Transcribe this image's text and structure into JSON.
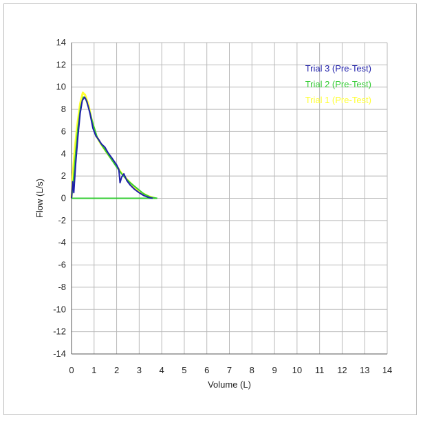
{
  "chart_data": {
    "type": "line",
    "title": "",
    "xlabel": "Volume (L)",
    "ylabel": "Flow (L/s)",
    "xlim": [
      0,
      14
    ],
    "ylim": [
      -14,
      14
    ],
    "x_ticks": [
      0,
      1,
      2,
      3,
      4,
      5,
      6,
      7,
      8,
      9,
      10,
      11,
      12,
      13,
      14
    ],
    "y_ticks": [
      -14,
      -12,
      -10,
      -8,
      -6,
      -4,
      -2,
      0,
      2,
      4,
      6,
      8,
      10,
      12,
      14
    ],
    "grid": true,
    "legend_position": "top-right",
    "series": [
      {
        "name": "Trial 1 (Pre-Test)",
        "color": "#ffff33",
        "points": [
          [
            0.0,
            0.0
          ],
          [
            0.05,
            2.0
          ],
          [
            0.15,
            4.5
          ],
          [
            0.25,
            6.5
          ],
          [
            0.38,
            8.5
          ],
          [
            0.5,
            9.5
          ],
          [
            0.6,
            9.3
          ],
          [
            0.75,
            8.4
          ],
          [
            0.9,
            7.0
          ],
          [
            1.1,
            5.6
          ],
          [
            1.3,
            4.9
          ],
          [
            1.6,
            4.0
          ],
          [
            1.9,
            3.2
          ],
          [
            2.2,
            2.3
          ],
          [
            2.5,
            1.6
          ],
          [
            2.8,
            1.0
          ],
          [
            3.1,
            0.5
          ],
          [
            3.4,
            0.2
          ],
          [
            3.7,
            0.0
          ]
        ]
      },
      {
        "name": "Trial 2 (Pre-Test)",
        "color": "#33cc33",
        "points": [
          [
            0.0,
            0.0
          ],
          [
            0.08,
            1.5
          ],
          [
            0.18,
            4.0
          ],
          [
            0.28,
            6.3
          ],
          [
            0.4,
            8.2
          ],
          [
            0.52,
            9.1
          ],
          [
            0.62,
            9.0
          ],
          [
            0.78,
            8.0
          ],
          [
            0.95,
            6.7
          ],
          [
            1.15,
            5.4
          ],
          [
            1.4,
            4.6
          ],
          [
            1.7,
            3.7
          ],
          [
            2.0,
            2.8
          ],
          [
            2.3,
            2.0
          ],
          [
            2.6,
            1.4
          ],
          [
            2.9,
            0.9
          ],
          [
            3.2,
            0.4
          ],
          [
            3.5,
            0.1
          ],
          [
            3.8,
            0.0
          ]
        ],
        "return": [
          [
            3.8,
            0.0
          ],
          [
            0.0,
            0.0
          ]
        ]
      },
      {
        "name": "Trial 3 (Pre-Test)",
        "color": "#1f1faa",
        "points": [
          [
            0.0,
            0.0
          ],
          [
            0.05,
            1.5
          ],
          [
            0.1,
            0.5
          ],
          [
            0.18,
            3.0
          ],
          [
            0.28,
            5.5
          ],
          [
            0.38,
            7.6
          ],
          [
            0.48,
            8.8
          ],
          [
            0.58,
            9.1
          ],
          [
            0.68,
            8.7
          ],
          [
            0.82,
            7.6
          ],
          [
            0.95,
            6.3
          ],
          [
            1.08,
            5.6
          ],
          [
            1.2,
            5.3
          ],
          [
            1.32,
            4.9
          ],
          [
            1.48,
            4.6
          ],
          [
            1.62,
            4.1
          ],
          [
            1.8,
            3.6
          ],
          [
            2.0,
            3.0
          ],
          [
            2.1,
            2.6
          ],
          [
            2.15,
            1.4
          ],
          [
            2.22,
            1.9
          ],
          [
            2.32,
            2.2
          ],
          [
            2.45,
            1.6
          ],
          [
            2.6,
            1.2
          ],
          [
            2.8,
            0.8
          ],
          [
            3.0,
            0.5
          ],
          [
            3.2,
            0.25
          ],
          [
            3.45,
            0.05
          ],
          [
            3.6,
            0.0
          ]
        ]
      }
    ]
  }
}
